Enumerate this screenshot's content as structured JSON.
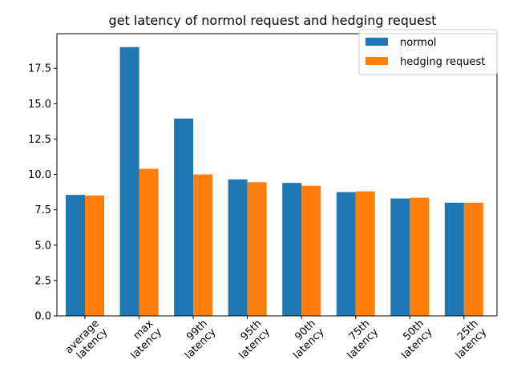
{
  "chart_data": {
    "type": "bar",
    "title": "get latency of normol request and hedging request",
    "xlabel": "",
    "ylabel": "",
    "ylim": [
      0,
      19.95
    ],
    "yticks": [
      0.0,
      2.5,
      5.0,
      7.5,
      10.0,
      12.5,
      15.0,
      17.5
    ],
    "ytick_labels": [
      "0.0",
      "2.5",
      "5.0",
      "7.5",
      "10.0",
      "12.5",
      "15.0",
      "17.5"
    ],
    "grid": false,
    "legend_position": "top-right",
    "categories": [
      [
        "average",
        "latency"
      ],
      [
        "max",
        "latency"
      ],
      [
        "99th",
        "latency"
      ],
      [
        "95th",
        "latency"
      ],
      [
        "90th",
        "latency"
      ],
      [
        "75th",
        "latency"
      ],
      [
        "50th",
        "latency"
      ],
      [
        "25th",
        "latency"
      ]
    ],
    "series": [
      {
        "name": "normol",
        "color": "#1f77b4",
        "values": [
          8.55,
          19.0,
          13.95,
          9.65,
          9.4,
          8.75,
          8.3,
          8.0
        ]
      },
      {
        "name": "hedging request",
        "color": "#ff7f0e",
        "values": [
          8.5,
          10.4,
          10.0,
          9.45,
          9.2,
          8.8,
          8.35,
          8.0
        ]
      }
    ]
  }
}
